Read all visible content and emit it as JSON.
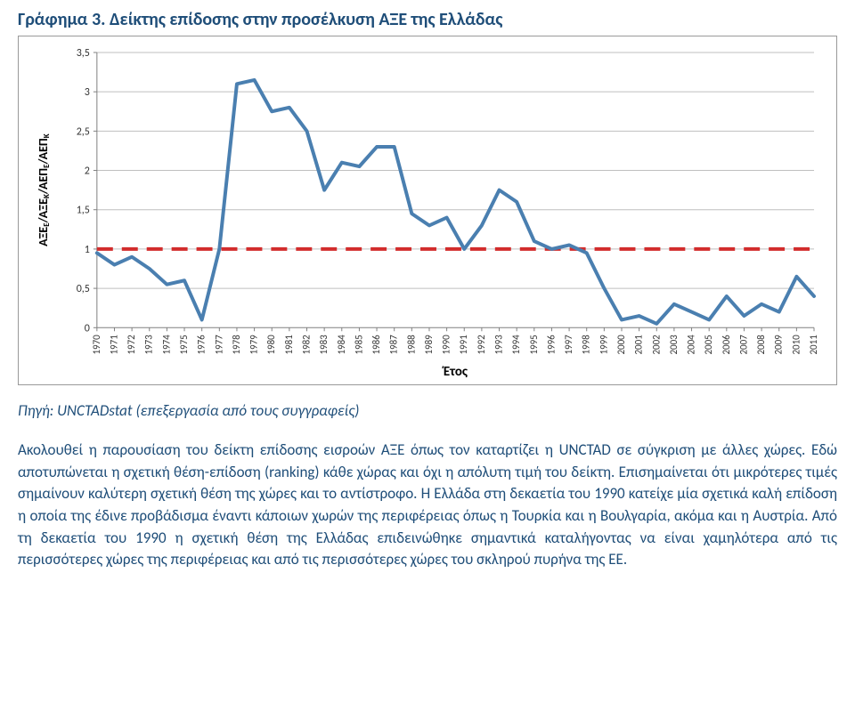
{
  "title_prefix": "Γράφημα 3.",
  "title_rest": " Δείκτης επίδοσης στην προσέλκυση ΑΞΕ της Ελλάδας",
  "title_prefix_color": "#1f4e79",
  "title_rest_color": "#1f4e79",
  "source_line": "Πηγή: UNCTADstat (επεξεργασία από τους συγγραφείς)",
  "source_color": "#1f4e79",
  "body_text": "Ακολουθεί η παρουσίαση του δείκτη επίδοσης εισροών ΑΞΕ όπως τον καταρτίζει η UNCTAD σε σύγκριση με άλλες χώρες. Εδώ αποτυπώνεται η σχετική θέση-επίδοση (ranking) κάθε χώρας και όχι η απόλυτη τιμή του δείκτη. Επισημαίνεται ότι μικρότερες τιμές σημαίνουν καλύτερη σχετική θέση της χώρες και το αντίστροφο. Η Ελλάδα στη δεκαετία του 1990 κατείχε μία σχετικά καλή επίδοση η οποία της έδινε προβάδισμα έναντι κάποιων χωρών της περιφέρειας όπως η Τουρκία και η Βουλγαρία, ακόμα και η Αυστρία. Από τη δεκαετία του 1990 η σχετική θέση της Ελλάδας επιδεινώθηκε σημαντικά καταλήγοντας να είναι χαμηλότερα από τις περισσότερες χώρες της περιφέρειας και από τις περισσότερες χώρες του σκληρού πυρήνα της ΕΕ.",
  "body_color": "#1f4e79",
  "chart": {
    "type": "line",
    "y_label": "ΑΞΕΕ/ΑΞΕΚ/ΑΕΠΕ/ΑΕΠΚ",
    "x_label": "Έτος",
    "ylim": [
      0,
      3.5
    ],
    "ytick_step": 0.5,
    "y_tick_labels": [
      "0",
      "0,5",
      "1",
      "1,5",
      "2",
      "2,5",
      "3",
      "3,5"
    ],
    "years": [
      "1970",
      "1971",
      "1972",
      "1973",
      "1974",
      "1975",
      "1976",
      "1977",
      "1978",
      "1979",
      "1980",
      "1981",
      "1982",
      "1983",
      "1984",
      "1985",
      "1986",
      "1987",
      "1988",
      "1989",
      "1990",
      "1991",
      "1992",
      "1993",
      "1994",
      "1995",
      "1996",
      "1997",
      "1998",
      "1999",
      "2000",
      "2001",
      "2002",
      "2003",
      "2004",
      "2005",
      "2006",
      "2007",
      "2008",
      "2009",
      "2010",
      "2011"
    ],
    "values": [
      0.95,
      0.8,
      0.9,
      0.75,
      0.55,
      0.6,
      0.1,
      1.0,
      3.1,
      3.15,
      2.75,
      2.8,
      2.5,
      1.75,
      2.1,
      2.05,
      2.3,
      2.3,
      1.45,
      1.3,
      1.4,
      1.0,
      1.3,
      1.75,
      1.6,
      1.1,
      1.0,
      1.05,
      0.95,
      0.5,
      0.1,
      0.15,
      0.05,
      0.3,
      0.2,
      0.1,
      0.4,
      0.15,
      0.3,
      0.2,
      0.65,
      0.4
    ],
    "reference_value": 1.0,
    "line_color": "#4a7fb0",
    "line_width": 4,
    "ref_color": "#d22c2c",
    "ref_width": 4,
    "ref_dash": "18 10",
    "grid_color": "#bfbfbf",
    "grid_width": 1,
    "axis_color": "#808080",
    "background_color": "#ffffff",
    "label_fontsize": 13,
    "tick_fontsize": 12,
    "xlabel_fontsize": 15,
    "ylabel_fontsize": 14,
    "label_color": "#333333"
  }
}
